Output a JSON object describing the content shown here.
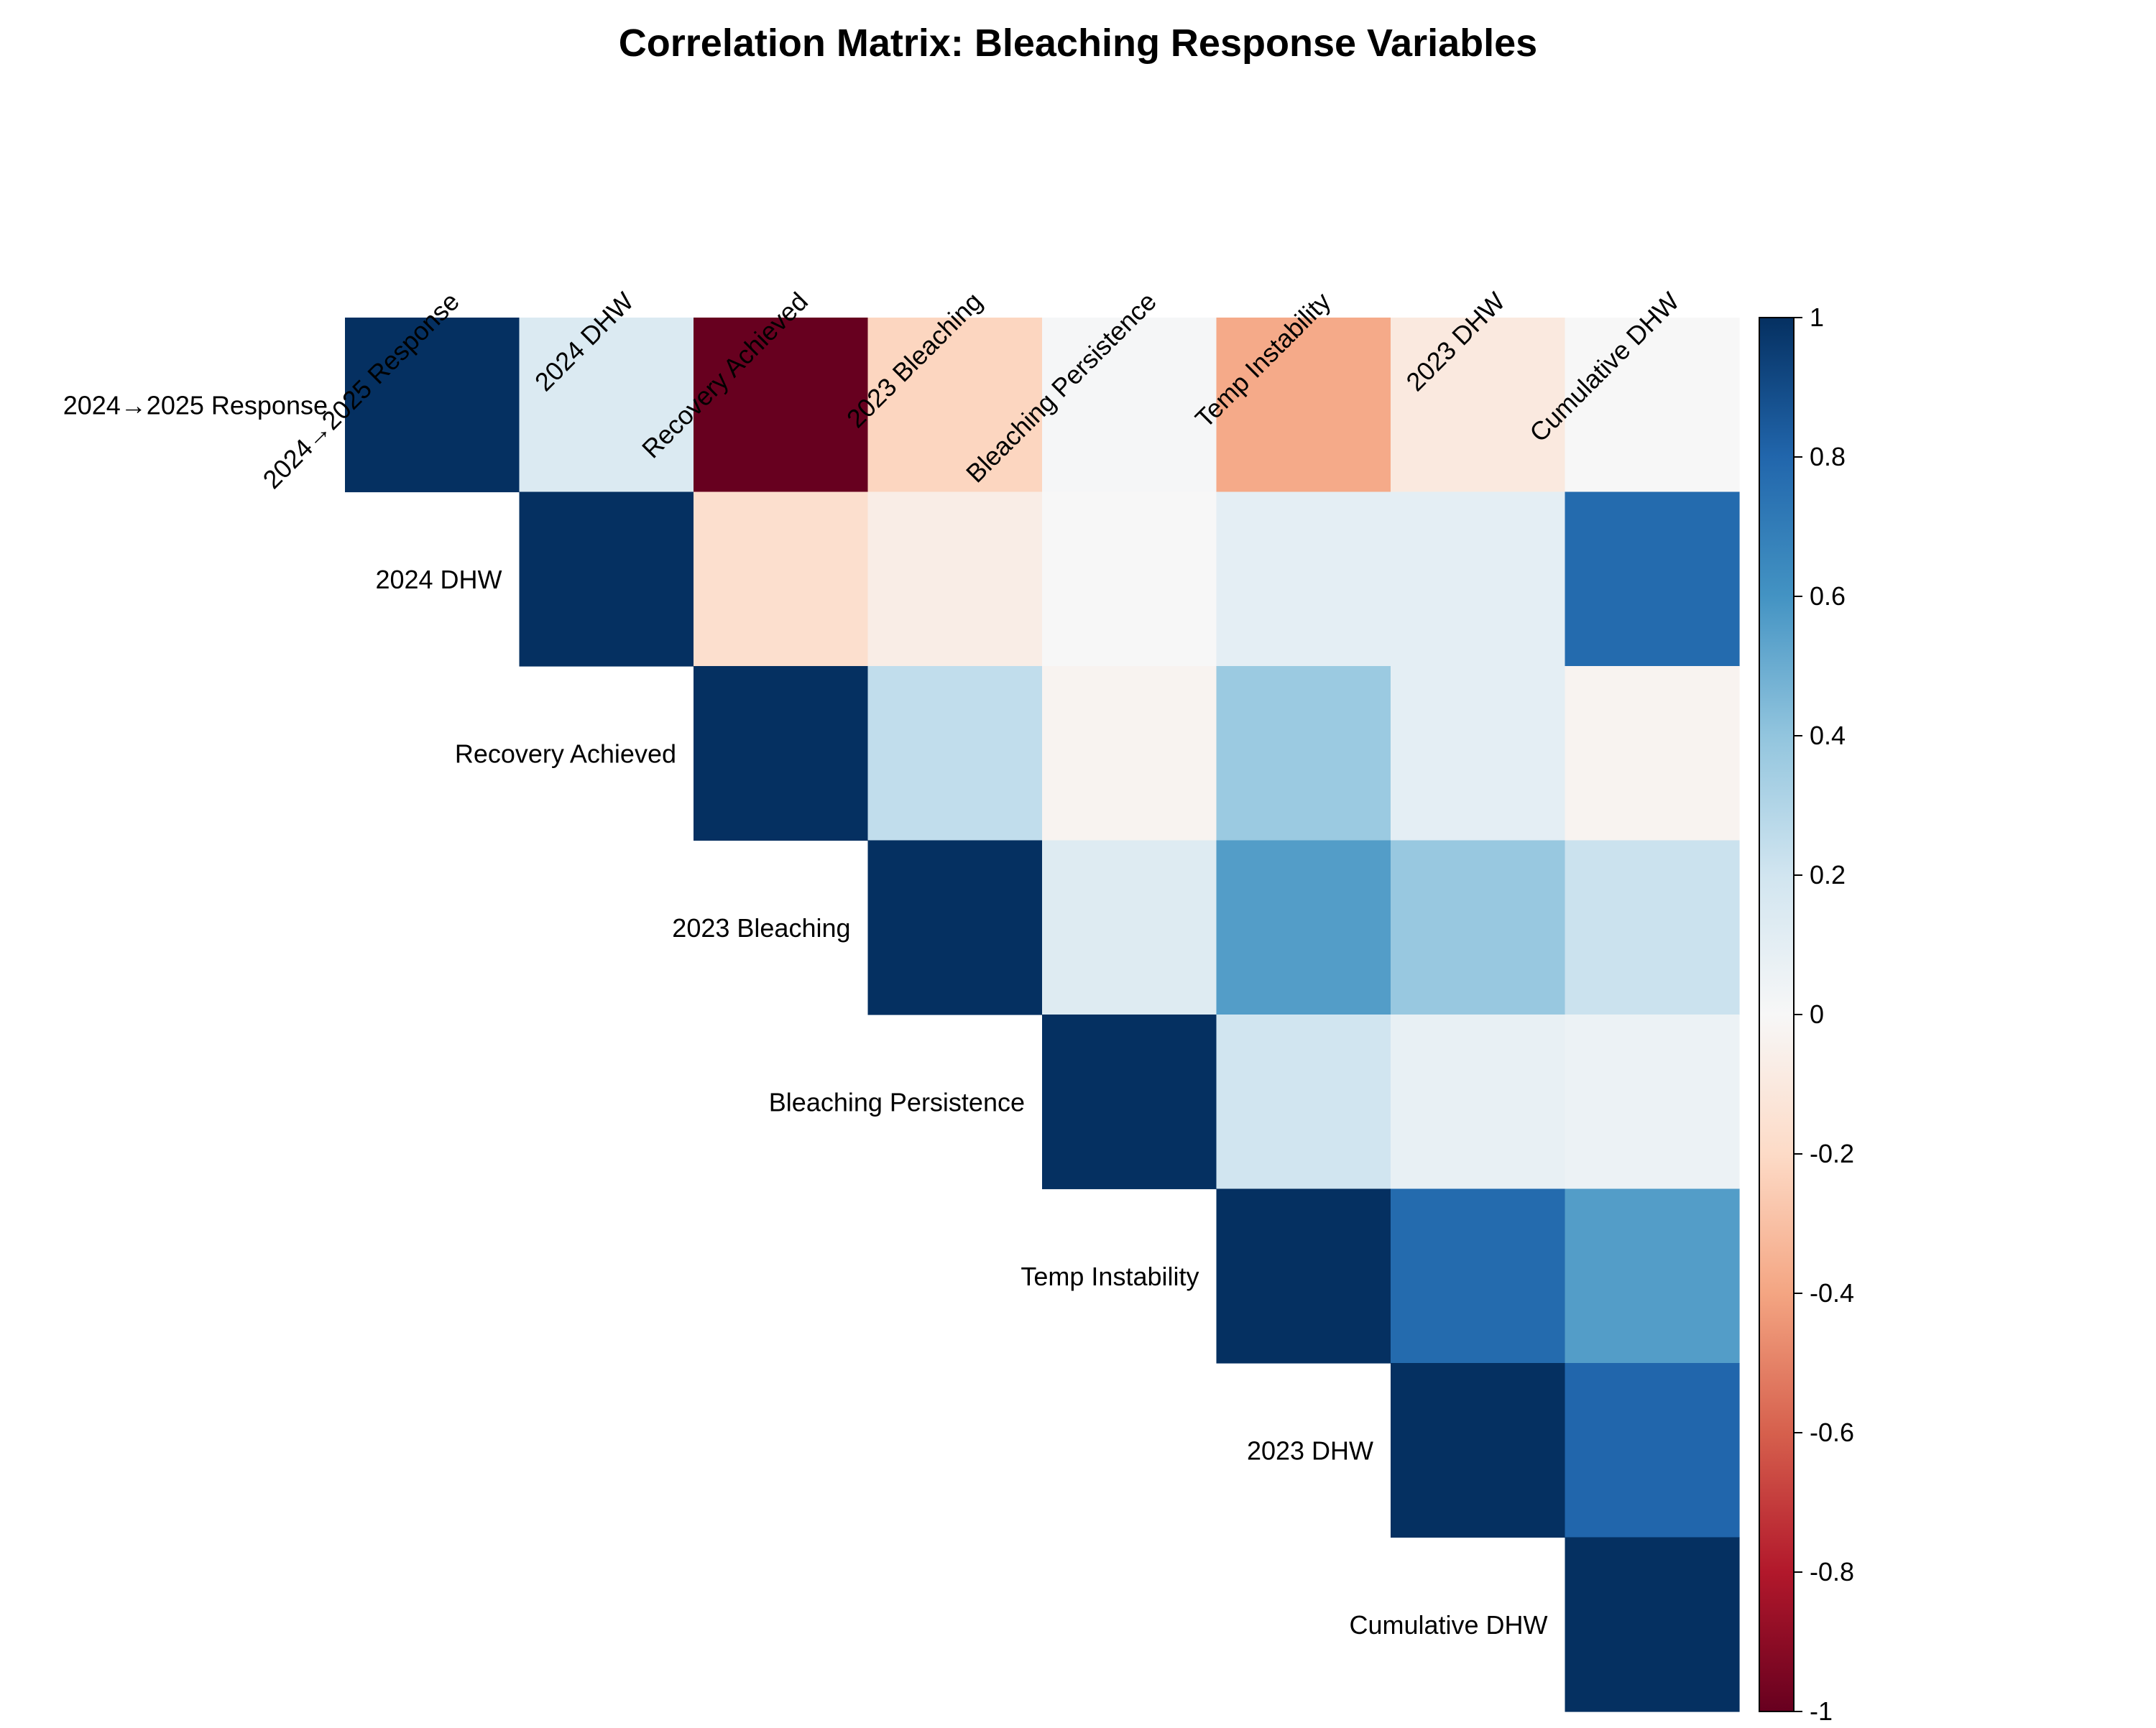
{
  "chart_data": {
    "type": "heatmap",
    "title": "Correlation Matrix: Bleaching Response Variables",
    "variables": [
      "2024→2025 Response",
      "2024 DHW",
      "Recovery Achieved",
      "2023 Bleaching",
      "Bleaching Persistence",
      "Temp Instability",
      "2023 DHW",
      "Cumulative DHW"
    ],
    "matrix": [
      [
        1.0,
        0.15,
        -1.0,
        -0.22,
        0.01,
        -0.38,
        -0.1,
        0.0
      ],
      [
        null,
        1.0,
        -0.17,
        -0.07,
        0.0,
        0.1,
        0.1,
        0.78
      ],
      [
        null,
        null,
        1.0,
        0.25,
        -0.03,
        0.37,
        0.1,
        -0.03
      ],
      [
        null,
        null,
        null,
        1.0,
        0.13,
        0.56,
        0.38,
        0.22
      ],
      [
        null,
        null,
        null,
        null,
        1.0,
        0.2,
        0.08,
        0.06
      ],
      [
        null,
        null,
        null,
        null,
        null,
        1.0,
        0.78,
        0.56
      ],
      [
        null,
        null,
        null,
        null,
        null,
        null,
        1.0,
        0.8
      ],
      [
        null,
        null,
        null,
        null,
        null,
        null,
        null,
        1.0
      ]
    ],
    "triangle": "upper",
    "colormap": "RdBu",
    "vmin": -1,
    "vmax": 1,
    "colorbar_ticks": [
      "1",
      "0.8",
      "0.6",
      "0.4",
      "0.2",
      "0",
      "-0.2",
      "-0.4",
      "-0.6",
      "-0.8",
      "-1"
    ],
    "grid": false,
    "legend": "colorbar-right"
  }
}
